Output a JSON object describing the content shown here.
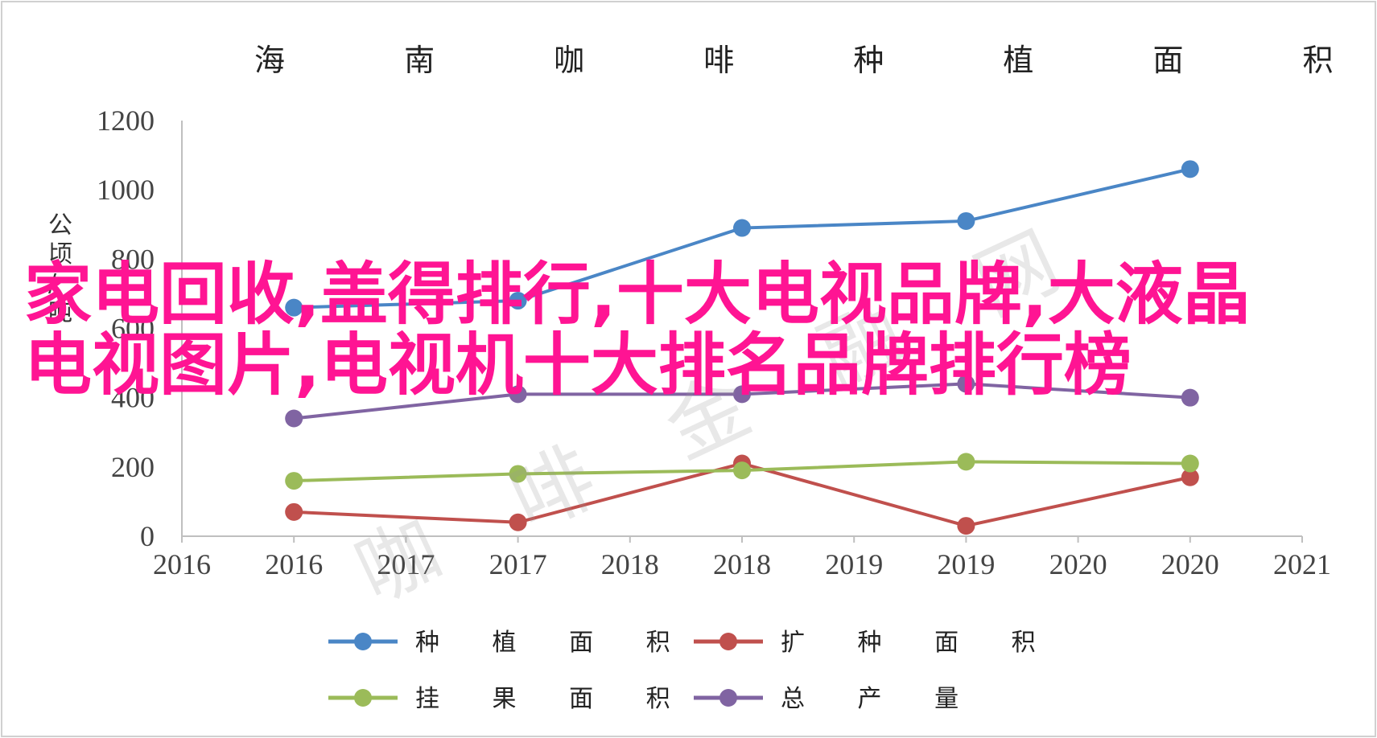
{
  "chart_data": {
    "type": "line",
    "title": "海 南 咖 啡 种 植 面 积 和 产 量",
    "ylabel": "公顷/吨",
    "xlabel": "",
    "ylim": [
      0,
      1200
    ],
    "yticks": [
      "0",
      "200",
      "400",
      "600",
      "800",
      "1000",
      "1200"
    ],
    "xticks": [
      "2016",
      "2016",
      "2017",
      "2017",
      "2018",
      "2018",
      "2019",
      "2019",
      "2020",
      "2020",
      "2021"
    ],
    "x": [
      "2016",
      "2017",
      "2018",
      "2019",
      "2020"
    ],
    "grid": false,
    "legend_position": "bottom",
    "series": [
      {
        "name": "种 植 面 积",
        "color": "#4a86c6",
        "values": [
          660,
          680,
          890,
          910,
          1060
        ]
      },
      {
        "name": "扩 种 面 积",
        "color": "#c0504d",
        "values": [
          70,
          40,
          210,
          30,
          170
        ]
      },
      {
        "name": "挂 果 面 积",
        "color": "#9bbb59",
        "values": [
          160,
          180,
          190,
          215,
          210
        ]
      },
      {
        "name": "总 产 量",
        "color": "#8064a2",
        "values": [
          340,
          410,
          410,
          440,
          400
        ]
      }
    ]
  },
  "watermark": "咖 啡 金 融 网",
  "overlay_caption": "家电回收,盖得排行,十大电视品牌,大液晶电视图片,电视机十大排名品牌排行榜"
}
